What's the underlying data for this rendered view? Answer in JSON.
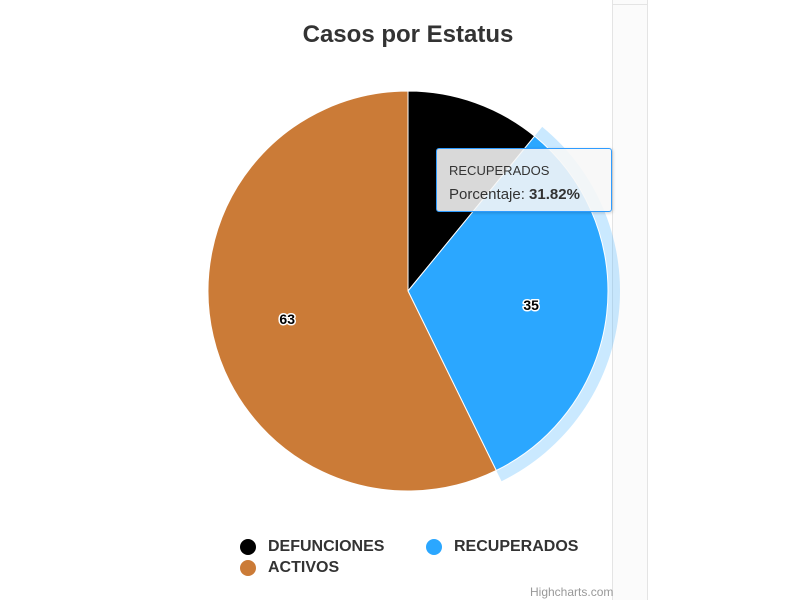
{
  "chart_data": {
    "type": "pie",
    "title": "Casos por Estatus",
    "series": [
      {
        "values": [
          {
            "name": "DEFUNCIONES",
            "value": 12,
            "color": "#000000"
          },
          {
            "name": "RECUPERADOS",
            "value": 35,
            "color": "#2ba7ff"
          },
          {
            "name": "ACTIVOS",
            "value": 63,
            "color": "#cb7b37"
          }
        ]
      }
    ],
    "data_labels": [
      "63",
      "35"
    ],
    "hovered_slice": "RECUPERADOS",
    "legend_position": "bottom"
  },
  "tooltip": {
    "title": "RECUPERADOS",
    "label": "Porcentaje: ",
    "value": "31.82%"
  },
  "legend": {
    "items": [
      {
        "label": "DEFUNCIONES",
        "color": "#000000"
      },
      {
        "label": "RECUPERADOS",
        "color": "#2ba7ff"
      },
      {
        "label": "ACTIVOS",
        "color": "#cb7b37"
      }
    ]
  },
  "credits": "Highcharts.com"
}
